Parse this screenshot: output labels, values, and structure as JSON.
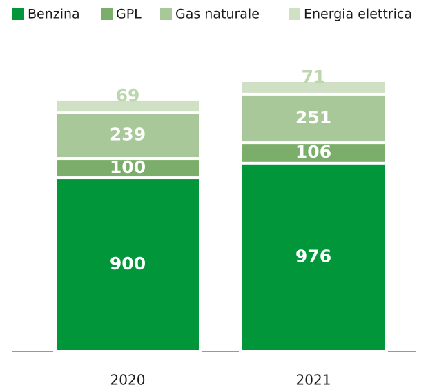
{
  "chart_data": {
    "type": "stacked_bar",
    "categories": [
      "2020",
      "2021"
    ],
    "series": [
      {
        "name": "Benzina",
        "color": "#009639",
        "values": [
          900,
          976
        ]
      },
      {
        "name": "GPL",
        "color": "#7aae6a",
        "values": [
          100,
          106
        ]
      },
      {
        "name": "Gas naturale",
        "color": "#a8c89a",
        "values": [
          239,
          251
        ]
      },
      {
        "name": "Energia elettrica",
        "color": "#cfe0c4",
        "values": [
          69,
          71
        ]
      }
    ]
  }
}
